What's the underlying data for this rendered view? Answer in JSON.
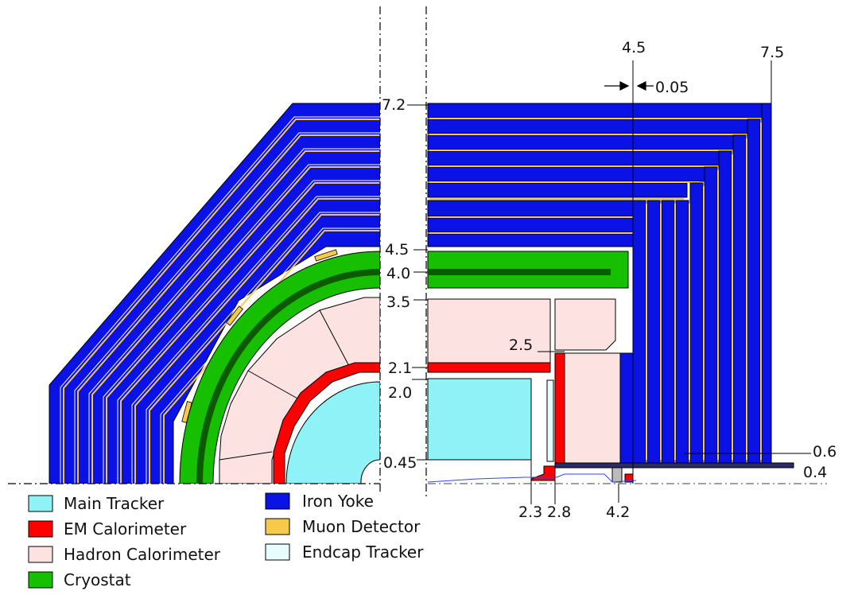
{
  "legend": [
    {
      "label": "Main Tracker",
      "color": "#8ef2f6"
    },
    {
      "label": "EM Calorimeter",
      "color": "#ff0000"
    },
    {
      "label": "Hadron Calorimeter",
      "color": "#fde2e2"
    },
    {
      "label": "Cryostat",
      "color": "#16c000"
    },
    {
      "label": "Iron Yoke",
      "color": "#0a12e6"
    },
    {
      "label": "Muon Detector",
      "color": "#f6c94a"
    },
    {
      "label": "Endcap Tracker",
      "color": "#e6fdff"
    }
  ],
  "dimensions": {
    "r_yoke_outer": "7.2",
    "r_yoke_inner": "4.5",
    "r_cryostat": "4.0",
    "r_hcal_outer": "3.5",
    "r_ecal": "2.1",
    "r_tracker": "2.0",
    "r_beampipe": "0.45",
    "z_ecal_endcap": "2.3",
    "z_hcal_endcap": "2.8",
    "z_yoke_endcap": "4.2",
    "z_yoke_start": "4.5",
    "z_yoke_end": "7.5",
    "gap": "0.05",
    "r_hcal_endcap": "2.5",
    "r_endcap_hole": "0.6",
    "r_endcap_inner": "0.4"
  },
  "colors": {
    "iron": "#0a12e6",
    "muon": "#f6c94a",
    "cryostat": "#16c000",
    "cryostat_dark": "#0c5a00",
    "hcal": "#fde2e2",
    "ecal": "#ff0000",
    "tracker": "#8ef2f6",
    "endcap_tracker": "#e6fdff"
  }
}
